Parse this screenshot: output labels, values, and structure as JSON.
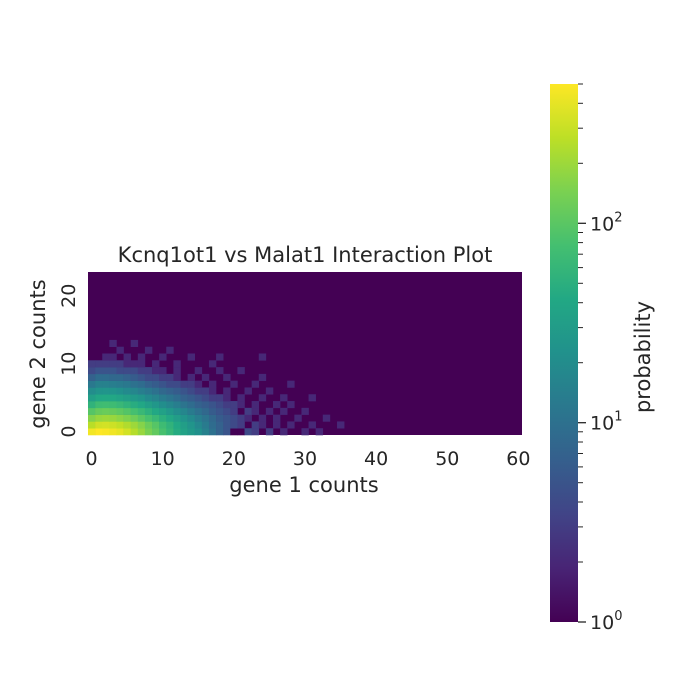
{
  "chart_data": {
    "type": "heatmap",
    "title": "Kcnq1ot1 vs Malat1 Interaction Plot",
    "xlabel": "gene 1 counts",
    "ylabel": "gene 2 counts",
    "xlim": [
      0,
      60
    ],
    "ylim": [
      0,
      23
    ],
    "x_ticks": [
      "0",
      "10",
      "20",
      "30",
      "40",
      "50",
      "60"
    ],
    "y_ticks": [
      "0",
      "10",
      "20"
    ],
    "colorbar": {
      "label": "probability",
      "scale": "log",
      "range": [
        1,
        500
      ],
      "colormap": "viridis",
      "tick_labels": [
        {
          "base": "10",
          "exp": "0"
        },
        {
          "base": "10",
          "exp": "1"
        },
        {
          "base": "10",
          "exp": "2"
        }
      ]
    },
    "background_value": 1,
    "cells_note": "row = gene 2 count (0..23), col = gene 1 count (0..60); values = probability, omitted cells = 1",
    "cells": [
      [
        0,
        0,
        450
      ],
      [
        0,
        1,
        500
      ],
      [
        0,
        2,
        480
      ],
      [
        0,
        3,
        440
      ],
      [
        0,
        4,
        400
      ],
      [
        0,
        5,
        330
      ],
      [
        0,
        6,
        250
      ],
      [
        0,
        7,
        190
      ],
      [
        0,
        8,
        140
      ],
      [
        0,
        9,
        110
      ],
      [
        0,
        10,
        80
      ],
      [
        0,
        11,
        60
      ],
      [
        0,
        12,
        45
      ],
      [
        0,
        13,
        35
      ],
      [
        0,
        14,
        28
      ],
      [
        0,
        15,
        22
      ],
      [
        0,
        16,
        15
      ],
      [
        0,
        17,
        10
      ],
      [
        0,
        18,
        7
      ],
      [
        0,
        19,
        5
      ],
      [
        0,
        20,
        1
      ],
      [
        0,
        21,
        1
      ],
      [
        0,
        22,
        4
      ],
      [
        0,
        23,
        3
      ],
      [
        0,
        25,
        3
      ],
      [
        0,
        27,
        2
      ],
      [
        0,
        30,
        2
      ],
      [
        0,
        32,
        2
      ],
      [
        1,
        0,
        260
      ],
      [
        1,
        1,
        320
      ],
      [
        1,
        2,
        330
      ],
      [
        1,
        3,
        310
      ],
      [
        1,
        4,
        280
      ],
      [
        1,
        5,
        240
      ],
      [
        1,
        6,
        200
      ],
      [
        1,
        7,
        160
      ],
      [
        1,
        8,
        120
      ],
      [
        1,
        9,
        95
      ],
      [
        1,
        10,
        70
      ],
      [
        1,
        11,
        55
      ],
      [
        1,
        12,
        42
      ],
      [
        1,
        13,
        32
      ],
      [
        1,
        14,
        25
      ],
      [
        1,
        15,
        18
      ],
      [
        1,
        16,
        13
      ],
      [
        1,
        17,
        9
      ],
      [
        1,
        18,
        7
      ],
      [
        1,
        19,
        5
      ],
      [
        1,
        20,
        4
      ],
      [
        1,
        21,
        3
      ],
      [
        1,
        23,
        3
      ],
      [
        1,
        24,
        2
      ],
      [
        1,
        26,
        2
      ],
      [
        1,
        28,
        2
      ],
      [
        1,
        31,
        2
      ],
      [
        1,
        35,
        2
      ],
      [
        2,
        0,
        160
      ],
      [
        2,
        1,
        190
      ],
      [
        2,
        2,
        200
      ],
      [
        2,
        3,
        190
      ],
      [
        2,
        4,
        170
      ],
      [
        2,
        5,
        150
      ],
      [
        2,
        6,
        125
      ],
      [
        2,
        7,
        100
      ],
      [
        2,
        8,
        80
      ],
      [
        2,
        9,
        64
      ],
      [
        2,
        10,
        50
      ],
      [
        2,
        11,
        40
      ],
      [
        2,
        12,
        31
      ],
      [
        2,
        13,
        24
      ],
      [
        2,
        14,
        19
      ],
      [
        2,
        15,
        14
      ],
      [
        2,
        16,
        11
      ],
      [
        2,
        17,
        8
      ],
      [
        2,
        18,
        6
      ],
      [
        2,
        19,
        5
      ],
      [
        2,
        20,
        4
      ],
      [
        2,
        21,
        3
      ],
      [
        2,
        22,
        2
      ],
      [
        2,
        24,
        2
      ],
      [
        2,
        26,
        2
      ],
      [
        2,
        29,
        2
      ],
      [
        2,
        33,
        2
      ],
      [
        3,
        0,
        95
      ],
      [
        3,
        1,
        115
      ],
      [
        3,
        2,
        120
      ],
      [
        3,
        3,
        115
      ],
      [
        3,
        4,
        105
      ],
      [
        3,
        5,
        92
      ],
      [
        3,
        6,
        78
      ],
      [
        3,
        7,
        64
      ],
      [
        3,
        8,
        52
      ],
      [
        3,
        9,
        42
      ],
      [
        3,
        10,
        34
      ],
      [
        3,
        11,
        27
      ],
      [
        3,
        12,
        21
      ],
      [
        3,
        13,
        17
      ],
      [
        3,
        14,
        13
      ],
      [
        3,
        15,
        10
      ],
      [
        3,
        16,
        8
      ],
      [
        3,
        17,
        6
      ],
      [
        3,
        18,
        5
      ],
      [
        3,
        19,
        4
      ],
      [
        3,
        20,
        3
      ],
      [
        3,
        22,
        3
      ],
      [
        3,
        23,
        2
      ],
      [
        3,
        25,
        2
      ],
      [
        3,
        27,
        2
      ],
      [
        3,
        30,
        2
      ],
      [
        4,
        0,
        55
      ],
      [
        4,
        1,
        70
      ],
      [
        4,
        2,
        72
      ],
      [
        4,
        3,
        70
      ],
      [
        4,
        4,
        63
      ],
      [
        4,
        5,
        55
      ],
      [
        4,
        6,
        47
      ],
      [
        4,
        7,
        40
      ],
      [
        4,
        8,
        32
      ],
      [
        4,
        9,
        26
      ],
      [
        4,
        10,
        21
      ],
      [
        4,
        11,
        17
      ],
      [
        4,
        12,
        14
      ],
      [
        4,
        13,
        11
      ],
      [
        4,
        14,
        9
      ],
      [
        4,
        15,
        7
      ],
      [
        4,
        16,
        6
      ],
      [
        4,
        17,
        5
      ],
      [
        4,
        18,
        4
      ],
      [
        4,
        19,
        3
      ],
      [
        4,
        20,
        3
      ],
      [
        4,
        21,
        2
      ],
      [
        4,
        23,
        2
      ],
      [
        4,
        26,
        2
      ],
      [
        4,
        28,
        2
      ],
      [
        5,
        0,
        33
      ],
      [
        5,
        1,
        40
      ],
      [
        5,
        2,
        42
      ],
      [
        5,
        3,
        40
      ],
      [
        5,
        4,
        36
      ],
      [
        5,
        5,
        32
      ],
      [
        5,
        6,
        28
      ],
      [
        5,
        7,
        24
      ],
      [
        5,
        8,
        19
      ],
      [
        5,
        9,
        16
      ],
      [
        5,
        10,
        13
      ],
      [
        5,
        11,
        11
      ],
      [
        5,
        12,
        9
      ],
      [
        5,
        13,
        7
      ],
      [
        5,
        14,
        6
      ],
      [
        5,
        15,
        5
      ],
      [
        5,
        16,
        4
      ],
      [
        5,
        17,
        3
      ],
      [
        5,
        18,
        3
      ],
      [
        5,
        19,
        2
      ],
      [
        5,
        21,
        2
      ],
      [
        5,
        24,
        2
      ],
      [
        5,
        27,
        2
      ],
      [
        5,
        31,
        2
      ],
      [
        6,
        0,
        20
      ],
      [
        6,
        1,
        24
      ],
      [
        6,
        2,
        25
      ],
      [
        6,
        3,
        24
      ],
      [
        6,
        4,
        22
      ],
      [
        6,
        5,
        19
      ],
      [
        6,
        6,
        17
      ],
      [
        6,
        7,
        14
      ],
      [
        6,
        8,
        12
      ],
      [
        6,
        9,
        10
      ],
      [
        6,
        10,
        8
      ],
      [
        6,
        11,
        7
      ],
      [
        6,
        12,
        6
      ],
      [
        6,
        13,
        5
      ],
      [
        6,
        14,
        4
      ],
      [
        6,
        15,
        3
      ],
      [
        6,
        16,
        3
      ],
      [
        6,
        17,
        2
      ],
      [
        6,
        19,
        2
      ],
      [
        6,
        22,
        2
      ],
      [
        6,
        25,
        2
      ],
      [
        7,
        0,
        12
      ],
      [
        7,
        1,
        15
      ],
      [
        7,
        2,
        15
      ],
      [
        7,
        3,
        14
      ],
      [
        7,
        4,
        13
      ],
      [
        7,
        5,
        12
      ],
      [
        7,
        6,
        10
      ],
      [
        7,
        7,
        9
      ],
      [
        7,
        8,
        7
      ],
      [
        7,
        9,
        6
      ],
      [
        7,
        10,
        5
      ],
      [
        7,
        11,
        4
      ],
      [
        7,
        12,
        4
      ],
      [
        7,
        13,
        3
      ],
      [
        7,
        14,
        3
      ],
      [
        7,
        15,
        2
      ],
      [
        7,
        17,
        2
      ],
      [
        7,
        20,
        2
      ],
      [
        7,
        23,
        2
      ],
      [
        7,
        28,
        2
      ],
      [
        8,
        0,
        7
      ],
      [
        8,
        1,
        9
      ],
      [
        8,
        2,
        9
      ],
      [
        8,
        3,
        8
      ],
      [
        8,
        4,
        8
      ],
      [
        8,
        5,
        7
      ],
      [
        8,
        6,
        6
      ],
      [
        8,
        7,
        5
      ],
      [
        8,
        8,
        4
      ],
      [
        8,
        9,
        4
      ],
      [
        8,
        10,
        3
      ],
      [
        8,
        11,
        3
      ],
      [
        8,
        12,
        2
      ],
      [
        8,
        14,
        2
      ],
      [
        8,
        16,
        2
      ],
      [
        8,
        19,
        2
      ],
      [
        8,
        24,
        2
      ],
      [
        9,
        0,
        4
      ],
      [
        9,
        1,
        5
      ],
      [
        9,
        2,
        5
      ],
      [
        9,
        3,
        5
      ],
      [
        9,
        4,
        4
      ],
      [
        9,
        5,
        4
      ],
      [
        9,
        6,
        4
      ],
      [
        9,
        7,
        3
      ],
      [
        9,
        8,
        3
      ],
      [
        9,
        9,
        2
      ],
      [
        9,
        10,
        2
      ],
      [
        9,
        12,
        2
      ],
      [
        9,
        15,
        2
      ],
      [
        9,
        18,
        2
      ],
      [
        9,
        21,
        2
      ],
      [
        10,
        0,
        3
      ],
      [
        10,
        1,
        3
      ],
      [
        10,
        2,
        3
      ],
      [
        10,
        3,
        3
      ],
      [
        10,
        4,
        3
      ],
      [
        10,
        5,
        2
      ],
      [
        10,
        6,
        2
      ],
      [
        10,
        7,
        2
      ],
      [
        10,
        9,
        2
      ],
      [
        10,
        12,
        2
      ],
      [
        10,
        17,
        2
      ],
      [
        11,
        2,
        2
      ],
      [
        11,
        3,
        2
      ],
      [
        11,
        5,
        2
      ],
      [
        11,
        7,
        2
      ],
      [
        11,
        10,
        2
      ],
      [
        11,
        14,
        2
      ],
      [
        11,
        18,
        2
      ],
      [
        11,
        24,
        2
      ],
      [
        12,
        4,
        2
      ],
      [
        12,
        8,
        2
      ],
      [
        12,
        11,
        2
      ],
      [
        13,
        3,
        2
      ],
      [
        13,
        6,
        2
      ]
    ]
  }
}
